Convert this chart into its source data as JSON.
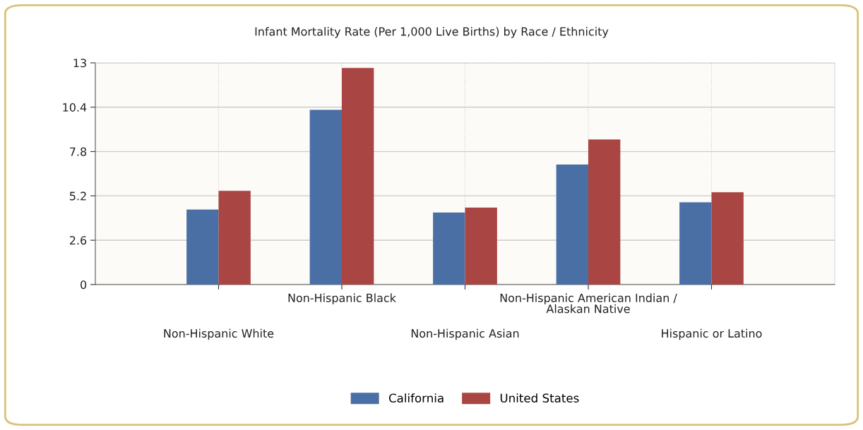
{
  "chart_data": {
    "type": "bar",
    "title": "Infant Mortality Rate (Per 1,000 Live Births) by Race / Ethnicity",
    "categories": [
      "Non-Hispanic White",
      "Non-Hispanic Black",
      "Non-Hispanic Asian",
      "Non-Hispanic American Indian /\nAlaskan Native",
      "Hispanic or Latino"
    ],
    "series": [
      {
        "name": "California",
        "color": "#4a6fa5",
        "values": [
          4.4,
          10.25,
          4.22,
          7.04,
          4.82
        ]
      },
      {
        "name": "United States",
        "color": "#a94643",
        "values": [
          5.5,
          12.7,
          4.51,
          8.51,
          5.41
        ]
      }
    ],
    "ylim": [
      0,
      13
    ],
    "yticks": [
      0,
      2.6,
      5.2,
      7.8,
      10.4,
      13
    ],
    "grid": true,
    "legend": "bottom"
  }
}
